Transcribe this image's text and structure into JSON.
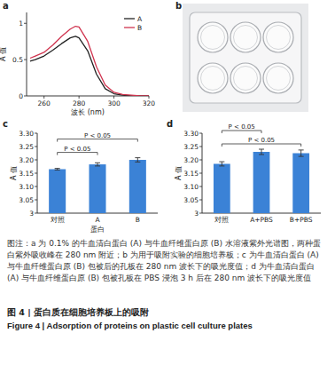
{
  "panels": [
    "a",
    "b",
    "c",
    "d"
  ],
  "chart_data": [
    {
      "type": "line",
      "x_label": "波长 (nm)",
      "y_label": "A 值",
      "x": [
        252,
        255,
        260,
        265,
        270,
        275,
        278,
        280,
        285,
        290,
        295,
        300,
        305,
        310,
        315,
        320
      ],
      "series": [
        {
          "name": "A",
          "color": "#222222",
          "values": [
            0.48,
            0.5,
            0.55,
            0.63,
            0.72,
            0.8,
            0.82,
            0.8,
            0.62,
            0.3,
            0.1,
            0.03,
            0.01,
            0.0,
            0.0,
            0.0
          ]
        },
        {
          "name": "B",
          "color": "#d0344f",
          "values": [
            0.52,
            0.55,
            0.6,
            0.7,
            0.82,
            0.92,
            0.96,
            0.95,
            0.75,
            0.4,
            0.15,
            0.05,
            0.02,
            0.01,
            0.0,
            0.0
          ]
        }
      ],
      "xlim": [
        250,
        320
      ],
      "xticks": [
        260,
        280,
        300,
        320
      ],
      "ylim": [
        0,
        1.15
      ],
      "yticks": [
        0,
        0.5,
        1
      ],
      "legend": "upper right",
      "grid": false
    },
    {
      "type": "bar",
      "x_label": "蛋白",
      "y_label": "A 值",
      "categories": [
        "对照",
        "A",
        "B"
      ],
      "values": [
        3.165,
        3.183,
        3.2
      ],
      "errors": [
        0.003,
        0.006,
        0.008
      ],
      "color": "#3b82d6",
      "ylim": [
        3,
        3.3
      ],
      "yticks": [
        3,
        3.05,
        {
          "value": 3.1,
          "label": "3.10"
        },
        3.15,
        {
          "value": 3.2,
          "label": "3.20"
        },
        3.25,
        {
          "value": 3.3,
          "label": "3.30"
        }
      ],
      "annotations": [
        {
          "text": "P < 0.05",
          "from": 0,
          "to": 2
        },
        {
          "text": "P < 0.05",
          "from": 0,
          "to": 1
        }
      ],
      "grid": false
    },
    {
      "type": "bar",
      "y_label": "A 值",
      "categories": [
        "对照",
        "A+PBS",
        "B+PBS"
      ],
      "values": [
        3.185,
        3.23,
        3.225
      ],
      "errors": [
        0.008,
        0.01,
        0.012
      ],
      "color": "#3b82d6",
      "ylim": [
        3,
        3.3
      ],
      "yticks": [
        3,
        3.05,
        {
          "value": 3.1,
          "label": "3.10"
        },
        3.15,
        {
          "value": 3.2,
          "label": "3.20"
        },
        3.25,
        {
          "value": 3.3,
          "label": "3.30"
        }
      ],
      "annotations": [
        {
          "text": "P < 0.05",
          "from": 0,
          "to": 1
        },
        {
          "text": "P < 0.05",
          "from": 0,
          "to": 2
        }
      ],
      "grid": false
    }
  ],
  "caption": "图注：a 为 0.1% 的牛血清白蛋白 (A) 与牛血纤维蛋白原 (B) 水溶液紫外光谱图，两种蛋白紫外吸收峰在 280 nm 附近；b 为用于吸附实验的细胞培养板；c 为牛血清白蛋白 (A) 与牛血纤维蛋白原 (B) 包被后的孔板在 280 nm 波长下的吸光度值；d 为牛血清白蛋白 (A) 与牛血纤维蛋白原 (B) 包被孔板在 PBS 浸泡 3 h 后在 280 nm 波长下的吸光度值",
  "figure_title": "图 4 | 蛋白质在细胞培养板上的吸附",
  "figure_title_en": "Figure 4 | Adsorption of proteins on plastic cell culture plates"
}
